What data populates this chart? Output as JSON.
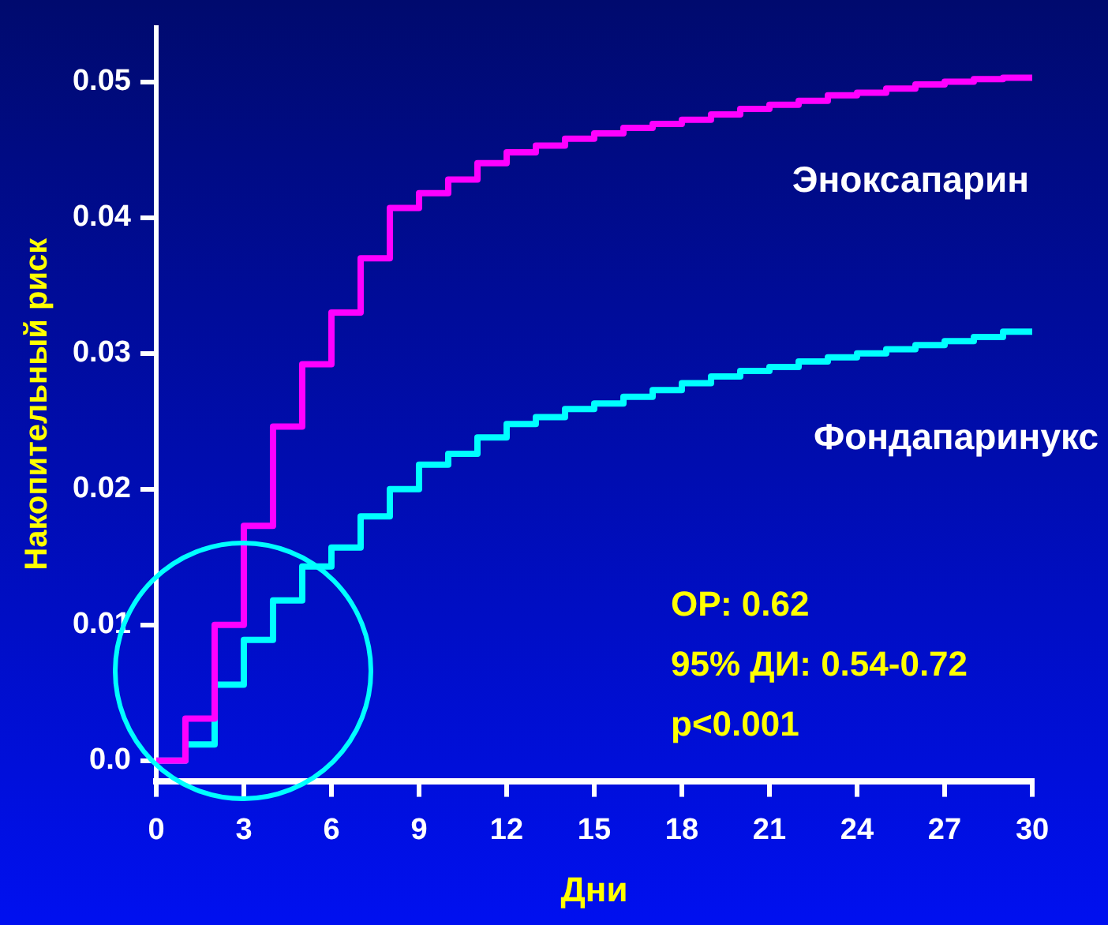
{
  "chart_data": {
    "type": "step",
    "xlabel": "Дни",
    "ylabel": "Накопительный риск",
    "x": [
      0,
      1,
      2,
      3,
      4,
      5,
      6,
      7,
      8,
      9,
      10,
      11,
      12,
      13,
      14,
      15,
      16,
      17,
      18,
      19,
      20,
      21,
      22,
      23,
      24,
      25,
      26,
      27,
      28,
      29,
      30
    ],
    "series": [
      {
        "name": "Эноксапарин",
        "color": "#ff00ff",
        "values": [
          0,
          0.0031,
          0.01,
          0.0173,
          0.0246,
          0.0292,
          0.033,
          0.037,
          0.0407,
          0.0418,
          0.0428,
          0.044,
          0.0448,
          0.0453,
          0.0458,
          0.0462,
          0.0466,
          0.0469,
          0.0472,
          0.0476,
          0.048,
          0.0483,
          0.0486,
          0.049,
          0.0492,
          0.0495,
          0.0498,
          0.05,
          0.0502,
          0.0503,
          0.0503
        ]
      },
      {
        "name": "Фондапаринукс",
        "color": "#00ffff",
        "values": [
          0,
          0.0012,
          0.0056,
          0.0089,
          0.0118,
          0.0143,
          0.0157,
          0.018,
          0.02,
          0.0218,
          0.0226,
          0.0238,
          0.0248,
          0.0253,
          0.0259,
          0.0263,
          0.0268,
          0.0273,
          0.0278,
          0.0283,
          0.0287,
          0.029,
          0.0294,
          0.0297,
          0.03,
          0.0303,
          0.0306,
          0.0309,
          0.0312,
          0.0316,
          0.0316
        ]
      }
    ],
    "xlim": [
      0,
      30
    ],
    "xticks": [
      0,
      3,
      6,
      9,
      12,
      15,
      18,
      21,
      24,
      27,
      30
    ],
    "ylim": [
      -0.0015,
      0.054
    ],
    "yticks": [
      {
        "value": 0,
        "label": "0.0"
      },
      0.01,
      0.02,
      0.03,
      0.04,
      0.05
    ],
    "annotations": [
      "ОР: 0.62",
      "95% ДИ: 0.54-0.72",
      "p<0.001"
    ],
    "grid": false,
    "legend": false,
    "line_style": "solid",
    "marker": "none"
  }
}
